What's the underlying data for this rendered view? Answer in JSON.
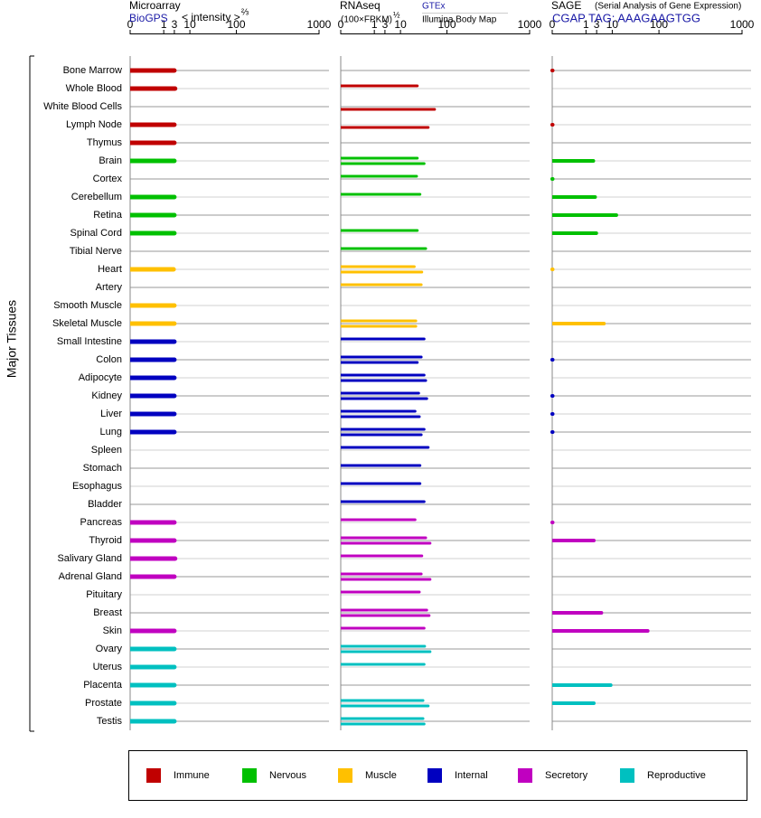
{
  "chart_data": {
    "type": "bar",
    "orientation": "horizontal",
    "y_label": "Major Tissues",
    "groups": [
      {
        "name": "Immune",
        "color": "#c00000",
        "categories": [
          "Bone Marrow",
          "Whole Blood",
          "White Blood Cells",
          "Lymph Node",
          "Thymus"
        ]
      },
      {
        "name": "Nervous",
        "color": "#00c000",
        "categories": [
          "Brain",
          "Cortex",
          "Cerebellum",
          "Retina",
          "Spinal Cord",
          "Tibial Nerve"
        ]
      },
      {
        "name": "Muscle",
        "color": "#ffc000",
        "categories": [
          "Heart",
          "Artery",
          "Smooth Muscle",
          "Skeletal Muscle"
        ]
      },
      {
        "name": "Internal",
        "color": "#0000c0",
        "categories": [
          "Small Intestine",
          "Colon",
          "Adipocyte",
          "Kidney",
          "Liver",
          "Lung",
          "Spleen",
          "Stomach",
          "Esophagus",
          "Bladder"
        ]
      },
      {
        "name": "Secretory",
        "color": "#c000c0",
        "categories": [
          "Pancreas",
          "Thyroid",
          "Salivary Gland",
          "Adrenal Gland",
          "Pituitary",
          "Breast",
          "Skin"
        ]
      },
      {
        "name": "Reproductive",
        "color": "#00c0c0",
        "categories": [
          "Ovary",
          "Uterus",
          "Placenta",
          "Prostate",
          "Testis"
        ]
      }
    ],
    "panels": [
      {
        "title": "Microarray",
        "unit_label": "< intensity >",
        "unit_exponent": "⅔",
        "xlim": [
          0,
          1000
        ],
        "xticks": [
          0,
          1,
          3,
          10,
          100,
          1000
        ],
        "xscale": "power",
        "xexponent": 0.25,
        "series": [
          {
            "name": "BioGPS",
            "values": [
              3,
              3.2,
              null,
              3,
              3,
              3,
              null,
              3,
              3,
              3,
              null,
              2.8,
              null,
              3,
              3,
              3,
              3,
              3,
              3,
              3,
              3,
              null,
              null,
              null,
              null,
              3,
              3,
              3.2,
              3,
              null,
              null,
              3,
              3,
              3,
              3,
              3,
              3
            ]
          }
        ]
      },
      {
        "title": "RNAseq",
        "unit_label": "(100×FPKM)",
        "unit_exponent": "½",
        "xlim": [
          0,
          1000
        ],
        "xticks": [
          0,
          1,
          3,
          10,
          100,
          1000
        ],
        "xscale": "power",
        "xexponent": 0.25,
        "series": [
          {
            "name": "GTEx",
            "values": [
              null,
              27,
              null,
              null,
              null,
              27,
              26,
              31,
              null,
              27,
              41,
              23,
              33,
              null,
              25,
              38,
              33,
              38,
              29,
              24,
              38,
              46,
              31,
              31,
              38,
              24,
              41,
              34,
              33,
              30,
              43,
              38,
              39,
              38,
              null,
              36,
              36
            ]
          },
          {
            "name": "Illumina Body Map",
            "values": [
              null,
              null,
              61,
              46,
              null,
              38,
              null,
              null,
              null,
              null,
              null,
              34,
              null,
              null,
              25,
              null,
              27,
              41,
              43,
              30,
              33,
              null,
              null,
              null,
              null,
              null,
              50,
              null,
              50,
              null,
              48,
              null,
              50,
              null,
              null,
              46,
              38
            ]
          }
        ]
      },
      {
        "title": "SAGE",
        "subtitle": "(Serial Analysis of Gene Expression)",
        "xlim": [
          0,
          1000
        ],
        "xticks": [
          0,
          1,
          3,
          10,
          100,
          1000
        ],
        "xscale": "power",
        "xexponent": 0.25,
        "series": [
          {
            "name": "CGAP TAG: AAAGAAGTGG",
            "values": [
              0,
              null,
              null,
              0,
              null,
              2.2,
              0,
              2.6,
              13,
              2.9,
              null,
              0,
              null,
              null,
              5.5,
              null,
              0,
              null,
              0,
              0,
              0,
              null,
              null,
              null,
              null,
              0,
              2.3,
              null,
              null,
              null,
              4.5,
              64,
              null,
              null,
              9,
              2.3,
              null
            ]
          }
        ]
      }
    ]
  }
}
